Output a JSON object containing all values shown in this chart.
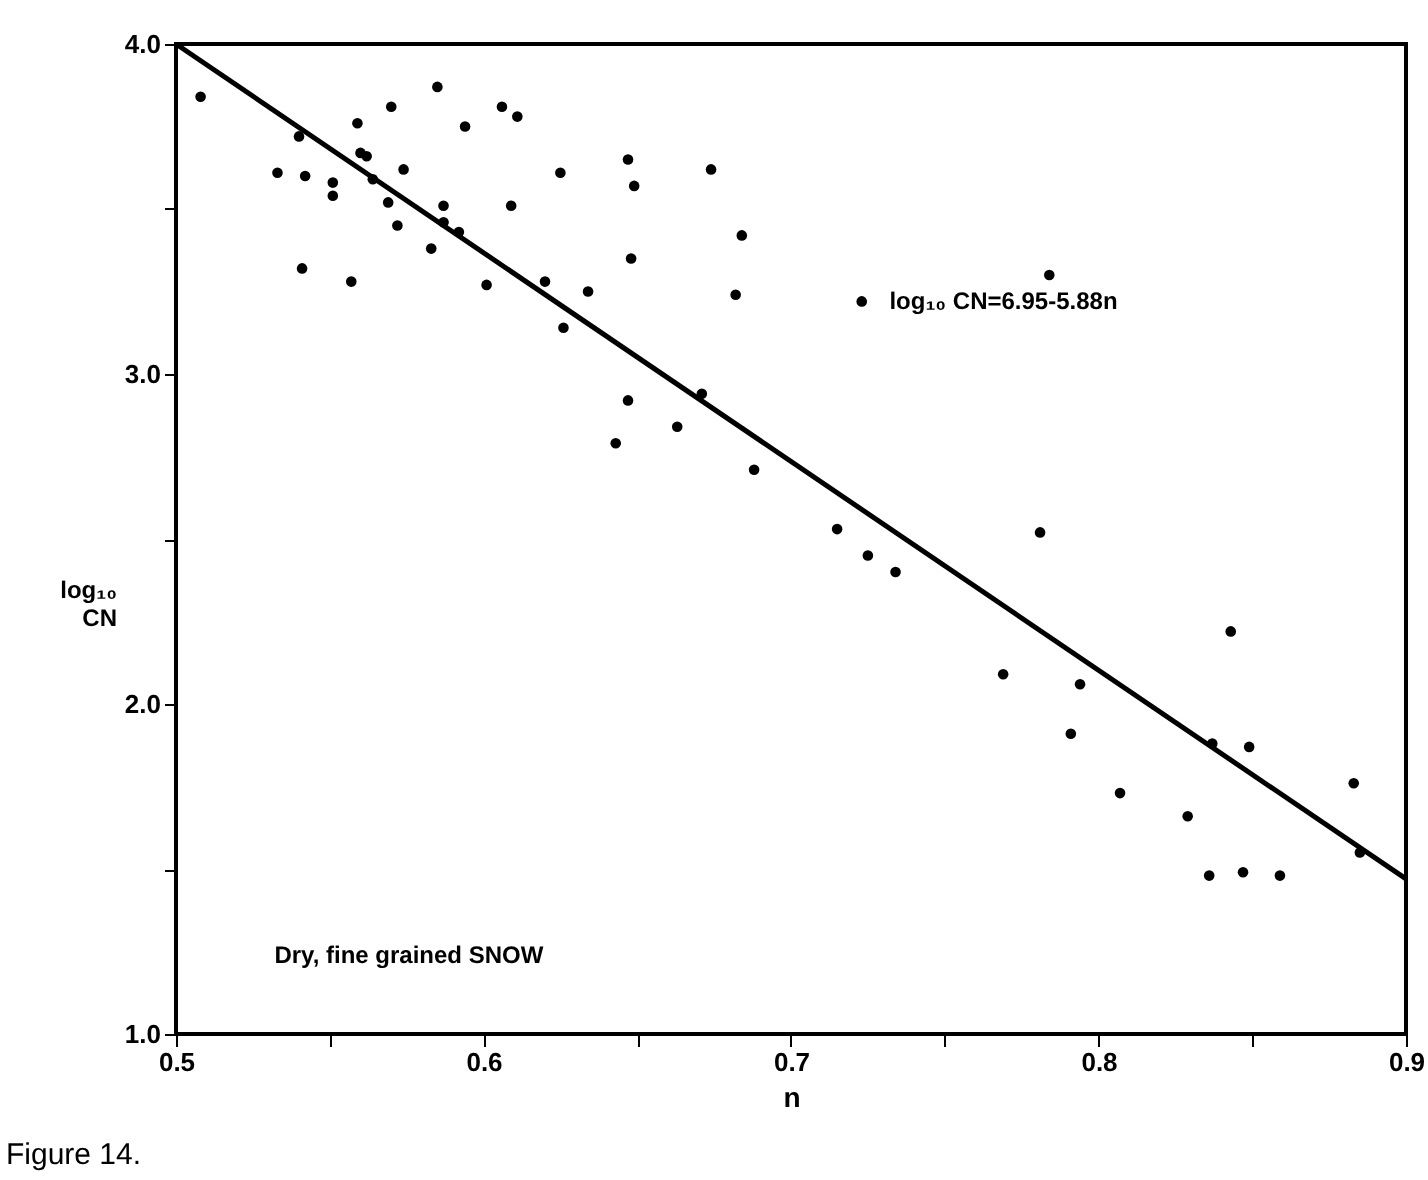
{
  "chart_data": {
    "type": "scatter",
    "xlabel": "n",
    "ylabel": "log₁₀ CN",
    "xlim": [
      0.5,
      0.9
    ],
    "ylim": [
      1.0,
      4.0
    ],
    "xticks": [
      {
        "value": 0.5,
        "label": "0.5"
      },
      {
        "value": 0.55,
        "label": null
      },
      {
        "value": 0.6,
        "label": "0.6"
      },
      {
        "value": 0.65,
        "label": null
      },
      {
        "value": 0.7,
        "label": "0.7"
      },
      {
        "value": 0.75,
        "label": null
      },
      {
        "value": 0.8,
        "label": "0.8"
      },
      {
        "value": 0.85,
        "label": null
      },
      {
        "value": 0.9,
        "label": "0.9"
      }
    ],
    "yticks": [
      {
        "value": 1.0,
        "label": "1.0"
      },
      {
        "value": 1.5,
        "label": null
      },
      {
        "value": 2.0,
        "label": "2.0"
      },
      {
        "value": 2.5,
        "label": null
      },
      {
        "value": 3.0,
        "label": "3.0"
      },
      {
        "value": 3.5,
        "label": null
      },
      {
        "value": 4.0,
        "label": "4.0"
      }
    ],
    "grid": false,
    "marker": "circle",
    "series": [
      {
        "color": "#000000",
        "x": [
          0.508,
          0.54,
          0.533,
          0.542,
          0.551,
          0.551,
          0.541,
          0.557,
          0.559,
          0.56,
          0.562,
          0.57,
          0.564,
          0.574,
          0.569,
          0.572,
          0.585,
          0.594,
          0.583,
          0.587,
          0.587,
          0.592,
          0.606,
          0.611,
          0.609,
          0.601,
          0.625,
          0.62,
          0.626,
          0.634,
          0.647,
          0.649,
          0.648,
          0.643,
          0.647,
          0.663,
          0.671,
          0.674,
          0.684,
          0.682,
          0.723,
          0.784,
          0.688,
          0.715,
          0.725,
          0.734,
          0.781,
          0.769,
          0.794,
          0.791,
          0.807,
          0.829,
          0.837,
          0.843,
          0.849,
          0.836,
          0.847,
          0.859,
          0.883,
          0.885
        ],
        "values": [
          3.84,
          3.72,
          3.61,
          3.6,
          3.58,
          3.54,
          3.32,
          3.28,
          3.76,
          3.67,
          3.66,
          3.81,
          3.59,
          3.62,
          3.52,
          3.45,
          3.87,
          3.75,
          3.38,
          3.51,
          3.46,
          3.43,
          3.81,
          3.78,
          3.51,
          3.27,
          3.61,
          3.28,
          3.14,
          3.25,
          3.65,
          3.57,
          3.35,
          2.79,
          2.92,
          2.84,
          2.94,
          3.62,
          3.42,
          3.24,
          3.22,
          3.3,
          2.71,
          2.53,
          2.45,
          2.4,
          2.52,
          2.09,
          2.06,
          1.91,
          1.73,
          1.66,
          1.88,
          2.22,
          1.87,
          1.48,
          1.49,
          1.48,
          1.76,
          1.55
        ]
      },
      {
        "type": "line",
        "color": "#000000",
        "line_style": "solid",
        "marker": "none",
        "x": [
          0.5,
          0.9
        ],
        "values": [
          4.0,
          1.47
        ]
      }
    ],
    "annotations": [
      "log₁₀ CN=6.95-5.88n",
      "Dry, fine grained SNOW",
      "Figure 14."
    ]
  }
}
